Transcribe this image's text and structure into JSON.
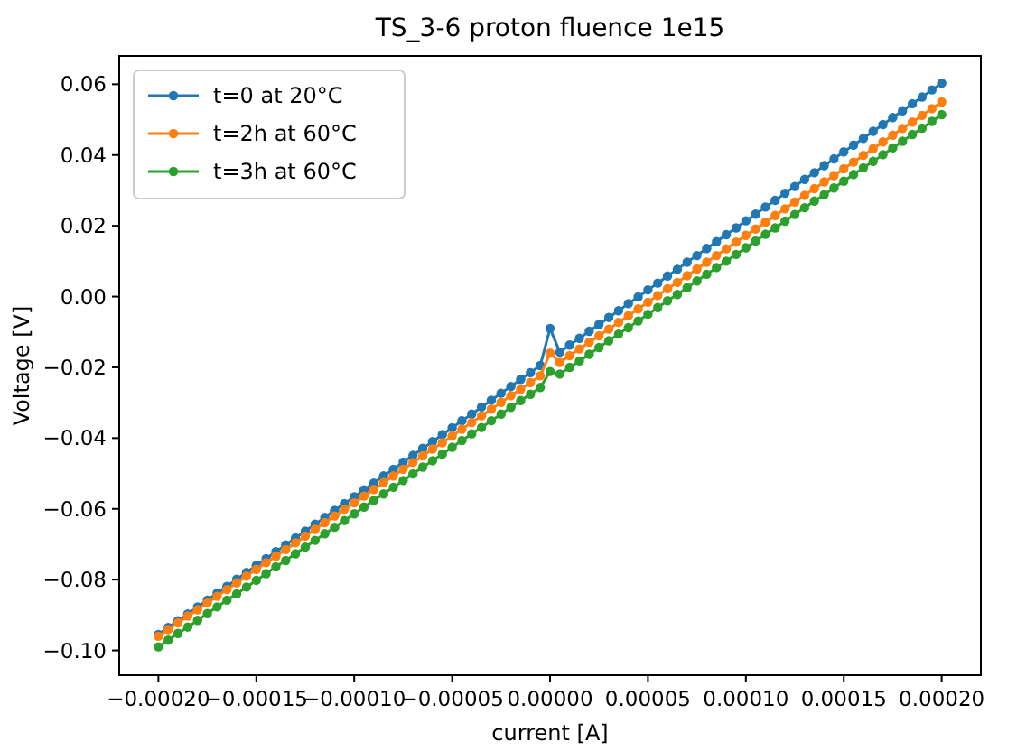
{
  "chart_data": {
    "type": "line",
    "title": "TS_3-6 proton fluence 1e15",
    "xlabel": "current [A]",
    "ylabel": "Voltage [V]",
    "x": [
      -0.0002,
      -0.000195,
      -0.00019,
      -0.000185,
      -0.00018,
      -0.000175,
      -0.00017,
      -0.000165,
      -0.00016,
      -0.000155,
      -0.00015,
      -0.000145,
      -0.00014,
      -0.000135,
      -0.00013,
      -0.000125,
      -0.00012,
      -0.000115,
      -0.00011,
      -0.000105,
      -0.0001,
      -9.5e-05,
      -9e-05,
      -8.5e-05,
      -8e-05,
      -7.5e-05,
      -7e-05,
      -6.5e-05,
      -6e-05,
      -5.5e-05,
      -5e-05,
      -4.5e-05,
      -4e-05,
      -3.5e-05,
      -3e-05,
      -2.5e-05,
      -2e-05,
      -1.5e-05,
      -1e-05,
      -5e-06,
      0,
      5e-06,
      1e-05,
      1.5e-05,
      2e-05,
      2.5e-05,
      3e-05,
      3.5e-05,
      4e-05,
      4.5e-05,
      5e-05,
      5.5e-05,
      6e-05,
      6.5e-05,
      7e-05,
      7.5e-05,
      8e-05,
      8.5e-05,
      9e-05,
      9.5e-05,
      0.0001,
      0.000105,
      0.00011,
      0.000115,
      0.00012,
      0.000125,
      0.00013,
      0.000135,
      0.00014,
      0.000145,
      0.00015,
      0.000155,
      0.00016,
      0.000165,
      0.00017,
      0.000175,
      0.00018,
      0.000185,
      0.00019,
      0.000195,
      0.0002
    ],
    "series": [
      {
        "name": "t=0 at 20°C",
        "color": "#1f77b4",
        "values": [
          -0.0955,
          -0.0935,
          -0.0916,
          -0.0897,
          -0.0877,
          -0.0858,
          -0.0838,
          -0.0819,
          -0.0799,
          -0.078,
          -0.076,
          -0.0741,
          -0.0721,
          -0.0702,
          -0.0682,
          -0.0663,
          -0.0643,
          -0.0624,
          -0.0604,
          -0.0585,
          -0.0566,
          -0.0546,
          -0.0527,
          -0.0507,
          -0.0488,
          -0.0468,
          -0.0449,
          -0.0429,
          -0.041,
          -0.039,
          -0.0371,
          -0.0351,
          -0.0332,
          -0.0312,
          -0.0293,
          -0.0273,
          -0.0254,
          -0.0234,
          -0.0215,
          -0.0195,
          -0.009,
          -0.0157,
          -0.0137,
          -0.0118,
          -0.0098,
          -0.0079,
          -0.0059,
          -0.004,
          -0.002,
          -0.0001,
          0.0019,
          0.0038,
          0.0058,
          0.0077,
          0.0097,
          0.0116,
          0.0136,
          0.0155,
          0.0175,
          0.0194,
          0.0214,
          0.0233,
          0.0253,
          0.0272,
          0.0292,
          0.0311,
          0.0331,
          0.035,
          0.037,
          0.0389,
          0.0409,
          0.0428,
          0.0447,
          0.0467,
          0.0486,
          0.0506,
          0.0525,
          0.0545,
          0.0564,
          0.0584,
          0.0603
        ]
      },
      {
        "name": "t=2h at 60°C",
        "color": "#ff7f0e",
        "values": [
          -0.096,
          -0.0941,
          -0.0922,
          -0.0903,
          -0.0885,
          -0.0866,
          -0.0847,
          -0.0828,
          -0.0809,
          -0.079,
          -0.0771,
          -0.0752,
          -0.0734,
          -0.0715,
          -0.0696,
          -0.0677,
          -0.0658,
          -0.0639,
          -0.062,
          -0.0601,
          -0.0583,
          -0.0564,
          -0.0545,
          -0.0526,
          -0.0507,
          -0.0488,
          -0.0469,
          -0.045,
          -0.0431,
          -0.0413,
          -0.0394,
          -0.0375,
          -0.0356,
          -0.0337,
          -0.0318,
          -0.0299,
          -0.028,
          -0.0262,
          -0.0243,
          -0.0224,
          -0.016,
          -0.0186,
          -0.0167,
          -0.0148,
          -0.0129,
          -0.0111,
          -0.0092,
          -0.0073,
          -0.0054,
          -0.0035,
          -0.0016,
          0.0003,
          0.0022,
          0.004,
          0.0059,
          0.0078,
          0.0097,
          0.0116,
          0.0135,
          0.0154,
          0.0173,
          0.0191,
          0.021,
          0.0229,
          0.0248,
          0.0267,
          0.0286,
          0.0305,
          0.0324,
          0.0342,
          0.0361,
          0.038,
          0.0399,
          0.0418,
          0.0437,
          0.0456,
          0.0475,
          0.0493,
          0.0512,
          0.0531,
          0.055
        ]
      },
      {
        "name": "t=3h at 60°C",
        "color": "#2ca02c",
        "values": [
          -0.099,
          -0.0971,
          -0.0952,
          -0.0934,
          -0.0915,
          -0.0896,
          -0.0877,
          -0.0858,
          -0.084,
          -0.0821,
          -0.0802,
          -0.0783,
          -0.0764,
          -0.0746,
          -0.0727,
          -0.0708,
          -0.0689,
          -0.067,
          -0.0652,
          -0.0633,
          -0.0614,
          -0.0595,
          -0.0576,
          -0.0558,
          -0.0539,
          -0.052,
          -0.0501,
          -0.0482,
          -0.0464,
          -0.0445,
          -0.0426,
          -0.0407,
          -0.0388,
          -0.037,
          -0.0351,
          -0.0332,
          -0.0313,
          -0.0294,
          -0.0276,
          -0.0257,
          -0.0212,
          -0.0219,
          -0.02,
          -0.0182,
          -0.0163,
          -0.0144,
          -0.0125,
          -0.0106,
          -0.0088,
          -0.0069,
          -0.005,
          -0.0031,
          -0.0012,
          0.0006,
          0.0025,
          0.0044,
          0.0063,
          0.0082,
          0.01,
          0.0119,
          0.0138,
          0.0157,
          0.0176,
          0.0194,
          0.0213,
          0.0232,
          0.0251,
          0.027,
          0.0288,
          0.0307,
          0.0326,
          0.0345,
          0.0364,
          0.0382,
          0.0401,
          0.042,
          0.0439,
          0.0458,
          0.0476,
          0.0495,
          0.0514
        ]
      }
    ],
    "xlim": [
      -0.00022,
      0.00022
    ],
    "xticks": [
      {
        "value": -0.0002,
        "label": "−0.00020"
      },
      {
        "value": -0.00015,
        "label": "−0.00015"
      },
      {
        "value": -0.0001,
        "label": "−0.00010"
      },
      {
        "value": -5e-05,
        "label": "−0.00005"
      },
      {
        "value": 0,
        "label": "0.00000"
      },
      {
        "value": 5e-05,
        "label": "0.00005"
      },
      {
        "value": 0.0001,
        "label": "0.00010"
      },
      {
        "value": 0.00015,
        "label": "0.00015"
      },
      {
        "value": 0.0002,
        "label": "0.00020"
      }
    ],
    "ylim": [
      -0.107,
      0.068
    ],
    "yticks": [
      {
        "value": -0.1,
        "label": "−0.10"
      },
      {
        "value": -0.08,
        "label": "−0.08"
      },
      {
        "value": -0.06,
        "label": "−0.06"
      },
      {
        "value": -0.04,
        "label": "−0.04"
      },
      {
        "value": -0.02,
        "label": "−0.02"
      },
      {
        "value": 0,
        "label": "0.00"
      },
      {
        "value": 0.02,
        "label": "0.02"
      },
      {
        "value": 0.04,
        "label": "0.04"
      },
      {
        "value": 0.06,
        "label": "0.06"
      }
    ],
    "legend": "top left",
    "marker": "circle",
    "line_style": "solid",
    "grid": false
  }
}
